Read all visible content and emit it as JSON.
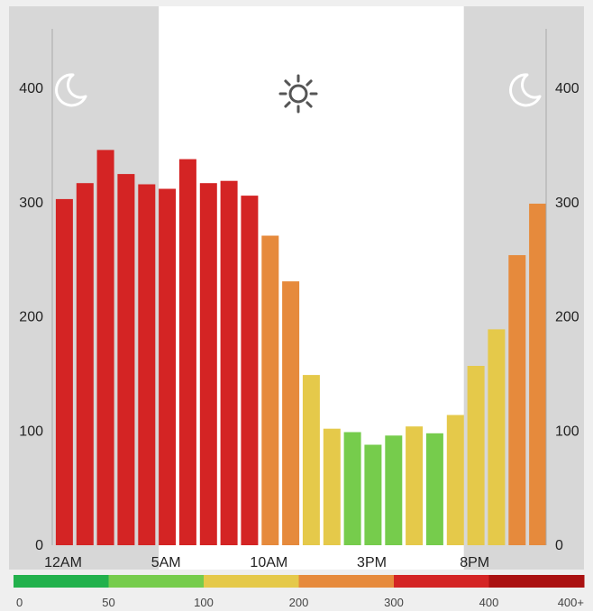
{
  "chart_data": {
    "type": "bar",
    "title": "",
    "xlabel": "",
    "ylabel": "",
    "ylim": [
      0,
      450
    ],
    "y_ticks": [
      0,
      100,
      200,
      300,
      400
    ],
    "y_axes": [
      "left",
      "right"
    ],
    "grid": false,
    "x_tick_labels": [
      {
        "hour": 0,
        "label": "12AM"
      },
      {
        "hour": 5,
        "label": "5AM"
      },
      {
        "hour": 10,
        "label": "10AM"
      },
      {
        "hour": 15,
        "label": "3PM"
      },
      {
        "hour": 20,
        "label": "8PM"
      }
    ],
    "hours": [
      0,
      1,
      2,
      3,
      4,
      5,
      6,
      7,
      8,
      9,
      10,
      11,
      12,
      13,
      14,
      15,
      16,
      17,
      18,
      19,
      20,
      21,
      22,
      23
    ],
    "values": [
      303,
      317,
      346,
      325,
      316,
      312,
      338,
      317,
      319,
      306,
      271,
      231,
      149,
      102,
      99,
      88,
      96,
      104,
      98,
      114,
      157,
      189,
      254,
      299
    ],
    "night_before_hour": 5,
    "night_after_hour": 19,
    "icons": [
      "moon-icon",
      "sun-icon",
      "moon-icon"
    ],
    "legend": {
      "thresholds": [
        "0",
        "50",
        "100",
        "200",
        "300",
        "400",
        "400+"
      ],
      "colors": [
        "#22b14c",
        "#76cc4c",
        "#e5c94a",
        "#e68a3c",
        "#d42424",
        "#aa1111"
      ]
    },
    "colors": {
      "night_shade": "#d7d7d7",
      "axis": "#a8a8a8",
      "icon_night": "#ffffff",
      "icon_day": "#555555"
    }
  }
}
